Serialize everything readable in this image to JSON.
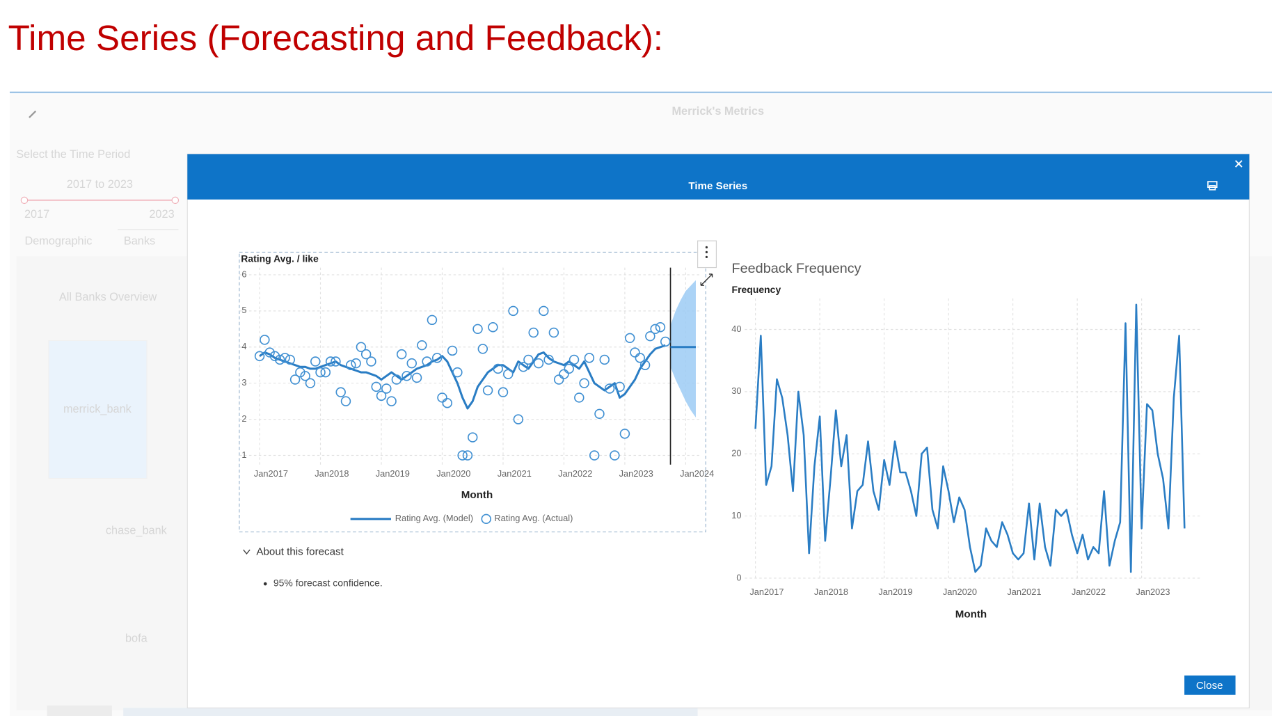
{
  "slide_title": "Time Series (Forecasting and Feedback):",
  "background": {
    "title": "Merrick's Metrics",
    "filter_label": "Select the Time Period",
    "range_label": "2017 to 2023",
    "slider_min": "2017",
    "slider_max": "2023",
    "tabs": [
      "Demographic",
      "Banks"
    ],
    "panel_title": "All Banks Overview",
    "bars": [
      "merrick_bank",
      "chase_bank",
      "bofa"
    ]
  },
  "modal": {
    "title": "Time Series",
    "note_heading": "About this forecast",
    "note_items": [
      "95% forecast confidence."
    ],
    "close_button": "Close"
  },
  "chart_data": [
    {
      "type": "line",
      "ylabel": "Rating Avg. / like",
      "xlabel": "Month",
      "x": [
        "2017-01",
        "2017-02",
        "2017-03",
        "2017-04",
        "2017-05",
        "2017-06",
        "2017-07",
        "2017-08",
        "2017-09",
        "2017-10",
        "2017-11",
        "2017-12",
        "2018-01",
        "2018-02",
        "2018-03",
        "2018-04",
        "2018-05",
        "2018-06",
        "2018-07",
        "2018-08",
        "2018-09",
        "2018-10",
        "2018-11",
        "2018-12",
        "2019-01",
        "2019-02",
        "2019-03",
        "2019-04",
        "2019-05",
        "2019-06",
        "2019-07",
        "2019-08",
        "2019-09",
        "2019-10",
        "2019-11",
        "2019-12",
        "2020-01",
        "2020-02",
        "2020-03",
        "2020-04",
        "2020-05",
        "2020-06",
        "2020-07",
        "2020-08",
        "2020-09",
        "2020-10",
        "2020-11",
        "2020-12",
        "2021-01",
        "2021-02",
        "2021-03",
        "2021-04",
        "2021-05",
        "2021-06",
        "2021-07",
        "2021-08",
        "2021-09",
        "2021-10",
        "2021-11",
        "2021-12",
        "2022-01",
        "2022-02",
        "2022-03",
        "2022-04",
        "2022-05",
        "2022-06",
        "2022-07",
        "2022-08",
        "2022-09",
        "2022-10",
        "2022-11",
        "2022-12",
        "2023-01",
        "2023-02",
        "2023-03",
        "2023-04",
        "2023-05",
        "2023-06",
        "2023-07",
        "2023-08",
        "2023-09"
      ],
      "series": [
        {
          "name": "Rating Avg. (Model)",
          "mark": "line",
          "color": "#2a7dc4",
          "values": [
            3.75,
            3.85,
            3.8,
            3.7,
            3.65,
            3.6,
            3.55,
            3.5,
            3.45,
            3.45,
            3.4,
            3.4,
            3.45,
            3.5,
            3.55,
            3.6,
            3.5,
            3.45,
            3.4,
            3.35,
            3.3,
            3.3,
            3.25,
            3.2,
            3.1,
            3.2,
            3.3,
            3.2,
            3.1,
            3.2,
            3.3,
            3.4,
            3.45,
            3.5,
            3.6,
            3.65,
            3.75,
            3.6,
            3.3,
            3.0,
            2.6,
            2.3,
            2.5,
            2.9,
            3.1,
            3.3,
            3.4,
            3.5,
            3.5,
            3.4,
            3.3,
            3.6,
            3.5,
            3.4,
            3.6,
            3.8,
            3.85,
            3.7,
            3.6,
            3.55,
            3.5,
            3.6,
            3.5,
            3.4,
            3.6,
            3.3,
            3.0,
            2.9,
            2.8,
            2.9,
            3.0,
            2.6,
            2.7,
            2.9,
            3.1,
            3.4,
            3.6,
            3.8,
            3.95,
            4.0,
            4.05
          ]
        },
        {
          "name": "Rating Avg. (Actual)",
          "mark": "circle",
          "color": "#3f8fd2",
          "values": [
            3.75,
            4.2,
            3.85,
            3.75,
            3.65,
            3.7,
            3.65,
            3.1,
            3.3,
            3.2,
            3.0,
            3.6,
            3.3,
            3.3,
            3.6,
            3.6,
            2.75,
            2.5,
            3.5,
            3.55,
            4.0,
            3.8,
            3.6,
            2.9,
            2.65,
            2.85,
            2.5,
            3.1,
            3.8,
            3.2,
            3.55,
            3.15,
            4.05,
            3.6,
            4.75,
            3.7,
            2.6,
            2.45,
            3.9,
            3.3,
            1.0,
            1.0,
            1.5,
            4.5,
            3.95,
            2.8,
            4.55,
            3.4,
            2.75,
            3.25,
            5.0,
            2.0,
            3.45,
            3.65,
            4.4,
            3.55,
            5.0,
            3.65,
            4.4,
            3.1,
            3.25,
            3.4,
            3.65,
            2.6,
            3.0,
            3.7,
            1.0,
            2.15,
            3.65,
            2.85,
            1.0,
            2.9,
            1.6,
            4.25,
            3.85,
            3.7,
            3.5,
            4.3,
            4.5,
            4.55,
            4.15
          ]
        }
      ],
      "forecast": {
        "x": [
          "2023-10",
          "2023-11",
          "2023-12",
          "2024-01",
          "2024-02",
          "2024-03"
        ],
        "values": [
          4,
          4,
          4,
          4,
          4,
          4
        ],
        "lower": [
          3.45,
          3.1,
          2.8,
          2.5,
          2.25,
          2.05
        ],
        "upper": [
          4.6,
          5.0,
          5.3,
          5.55,
          5.7,
          5.85
        ],
        "color": "#9ccbf5"
      },
      "xlim": [
        "2016-09",
        "2024-04"
      ],
      "ylim": [
        0.7,
        6.2
      ],
      "yticks": [
        1,
        2,
        3,
        4,
        5,
        6
      ],
      "xticks": [
        {
          "value": "2017-01",
          "label": "Jan2017"
        },
        {
          "value": "2018-01",
          "label": "Jan2018"
        },
        {
          "value": "2019-01",
          "label": "Jan2019"
        },
        {
          "value": "2020-01",
          "label": "Jan2020"
        },
        {
          "value": "2021-01",
          "label": "Jan2021"
        },
        {
          "value": "2022-01",
          "label": "Jan2022"
        },
        {
          "value": "2023-01",
          "label": "Jan2023"
        },
        {
          "value": "2024-01",
          "label": "Jan2024"
        }
      ],
      "grid": true,
      "legend": "bottom"
    },
    {
      "type": "line",
      "title": "Feedback Frequency",
      "ylabel": "Frequency",
      "xlabel": "Month",
      "color": "#2a7dc4",
      "x": [
        "2017-01",
        "2017-02",
        "2017-03",
        "2017-04",
        "2017-05",
        "2017-06",
        "2017-07",
        "2017-08",
        "2017-09",
        "2017-10",
        "2017-11",
        "2017-12",
        "2018-01",
        "2018-02",
        "2018-03",
        "2018-04",
        "2018-05",
        "2018-06",
        "2018-07",
        "2018-08",
        "2018-09",
        "2018-10",
        "2018-11",
        "2018-12",
        "2019-01",
        "2019-02",
        "2019-03",
        "2019-04",
        "2019-05",
        "2019-06",
        "2019-07",
        "2019-08",
        "2019-09",
        "2019-10",
        "2019-11",
        "2019-12",
        "2020-01",
        "2020-02",
        "2020-03",
        "2020-04",
        "2020-05",
        "2020-06",
        "2020-07",
        "2020-08",
        "2020-09",
        "2020-10",
        "2020-11",
        "2020-12",
        "2021-01",
        "2021-02",
        "2021-03",
        "2021-04",
        "2021-05",
        "2021-06",
        "2021-07",
        "2021-08",
        "2021-09",
        "2021-10",
        "2021-11",
        "2021-12",
        "2022-01",
        "2022-02",
        "2022-03",
        "2022-04",
        "2022-05",
        "2022-06",
        "2022-07",
        "2022-08",
        "2022-09",
        "2022-10",
        "2022-11",
        "2022-12",
        "2023-01",
        "2023-02",
        "2023-03",
        "2023-04",
        "2023-05",
        "2023-06",
        "2023-07",
        "2023-08",
        "2023-09"
      ],
      "values": [
        24,
        39,
        15,
        18,
        32,
        29,
        23,
        14,
        30,
        23,
        4,
        18,
        26,
        6,
        16,
        27,
        18,
        23,
        8,
        14,
        15,
        22,
        14,
        11,
        19,
        15,
        22,
        17,
        17,
        14,
        10,
        20,
        21,
        11,
        8,
        18,
        14,
        9,
        13,
        11,
        5,
        1,
        2,
        8,
        6,
        5,
        9,
        7,
        4,
        3,
        4,
        12,
        3,
        12,
        5,
        2,
        11,
        10,
        11,
        7,
        4,
        7,
        3,
        5,
        4,
        14,
        2,
        6,
        9,
        41,
        1,
        44,
        8,
        28,
        27,
        20,
        16,
        8,
        29,
        39,
        8
      ],
      "xlim": [
        "2016-11",
        "2023-12"
      ],
      "ylim": [
        0,
        45
      ],
      "yticks": [
        0,
        10,
        20,
        30,
        40
      ],
      "xticks": [
        {
          "value": "2017-01",
          "label": "Jan2017"
        },
        {
          "value": "2018-01",
          "label": "Jan2018"
        },
        {
          "value": "2019-01",
          "label": "Jan2019"
        },
        {
          "value": "2020-01",
          "label": "Jan2020"
        },
        {
          "value": "2021-01",
          "label": "Jan2021"
        },
        {
          "value": "2022-01",
          "label": "Jan2022"
        },
        {
          "value": "2023-01",
          "label": "Jan2023"
        }
      ],
      "grid": true
    }
  ]
}
